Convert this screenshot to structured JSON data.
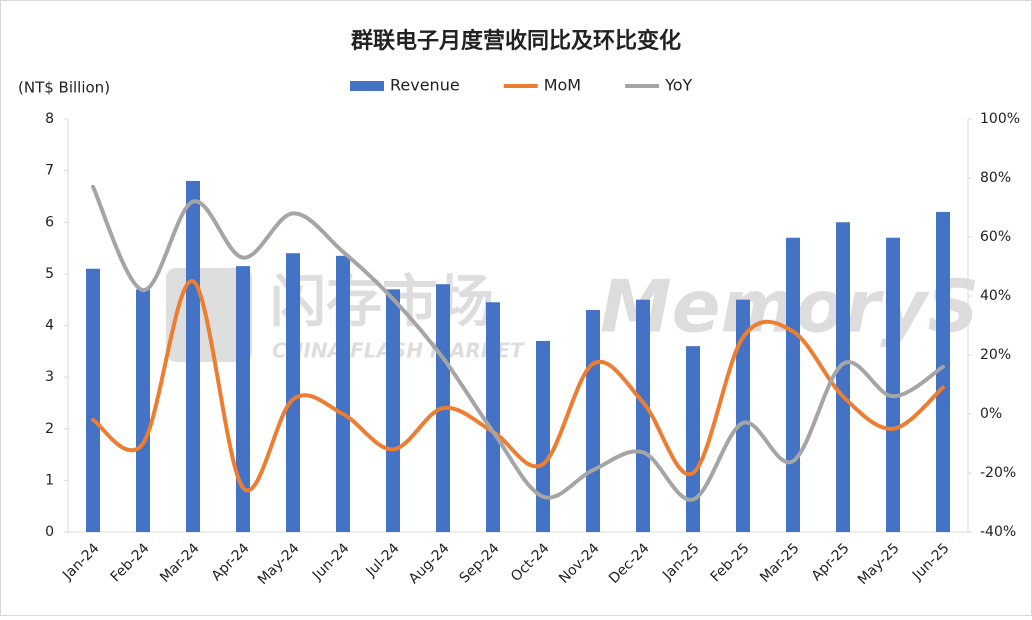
{
  "chart_data": {
    "type": "bar-line",
    "title": "群联电子月度营收同比及环比变化",
    "y_label": "(NT$ Billion)",
    "categories": [
      "Jan-24",
      "Feb-24",
      "Mar-24",
      "Apr-24",
      "May-24",
      "Jun-24",
      "Jul-24",
      "Aug-24",
      "Sep-24",
      "Oct-24",
      "Nov-24",
      "Dec-24",
      "Jan-25",
      "Feb-25",
      "Mar-25",
      "Apr-25",
      "May-25",
      "Jun-25"
    ],
    "series": [
      {
        "name": "Revenue",
        "type": "bar",
        "color": "#4472c4",
        "values": [
          5.1,
          4.7,
          6.8,
          5.15,
          5.4,
          5.35,
          4.7,
          4.8,
          4.45,
          3.7,
          4.3,
          4.5,
          3.6,
          4.5,
          5.7,
          6.0,
          5.7,
          6.2
        ]
      },
      {
        "name": "MoM",
        "type": "line",
        "axis": "y2",
        "color": "#ed7d31",
        "values": [
          -2,
          -10,
          45,
          -25,
          5,
          0,
          -12,
          2,
          -6,
          -17,
          17,
          4,
          -20,
          26,
          28,
          6,
          -5,
          9
        ]
      },
      {
        "name": "YoY",
        "type": "line",
        "axis": "y2",
        "color": "#a5a5a5",
        "values": [
          77,
          42,
          72,
          53,
          68,
          55,
          39,
          19,
          -6,
          -28,
          -19,
          -13,
          -29,
          -3,
          -16,
          17,
          6,
          16
        ]
      }
    ],
    "ylim": [
      0,
      8
    ],
    "yticks": [
      0,
      1,
      2,
      3,
      4,
      5,
      6,
      7,
      8
    ],
    "y2lim": [
      -40,
      100
    ],
    "y2ticks": [
      {
        "value": -40,
        "label": "-40%"
      },
      {
        "value": -20,
        "label": "-20%"
      },
      {
        "value": 0,
        "label": "0%"
      },
      {
        "value": 20,
        "label": "20%"
      },
      {
        "value": 40,
        "label": "40%"
      },
      {
        "value": 60,
        "label": "60%"
      },
      {
        "value": 80,
        "label": "80%"
      },
      {
        "value": 100,
        "label": "100%"
      }
    ],
    "legend": "top"
  },
  "watermark": {
    "cn": "闪存市场",
    "en": "CHINA FLASH MARKET",
    "brand": "MemoryS"
  }
}
